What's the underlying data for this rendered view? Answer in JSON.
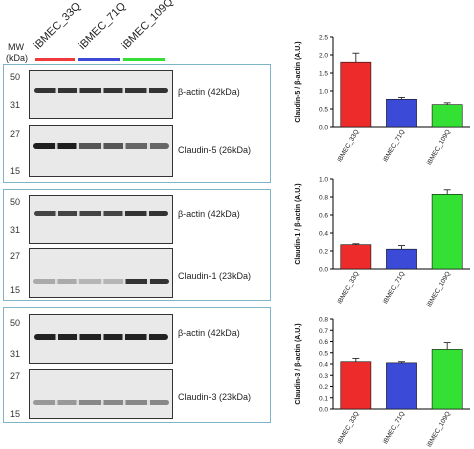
{
  "header": {
    "mw_label": "MW",
    "kda_label": "(kDa)",
    "lanes": [
      {
        "label": "iBMEC_33Q",
        "color": "#ee3a3a"
      },
      {
        "label": "iBMEC_71Q",
        "color": "#3b4bd8"
      },
      {
        "label": "iBMEC_109Q",
        "color": "#35e035"
      }
    ]
  },
  "blots": [
    {
      "top": {
        "mw_hi": "50",
        "mw_lo": "31",
        "label": "β-actin (42kDa)"
      },
      "bottom": {
        "mw_hi": "27",
        "mw_lo": "15",
        "label": "Claudin-5 (26kDa)"
      }
    },
    {
      "top": {
        "mw_hi": "50",
        "mw_lo": "31",
        "label": "β-actin (42kDa)"
      },
      "bottom": {
        "mw_hi": "27",
        "mw_lo": "15",
        "label": "Claudin-1 (23kDa)"
      }
    },
    {
      "top": {
        "mw_hi": "50",
        "mw_lo": "31",
        "label": "β-actin (42kDa)"
      },
      "bottom": {
        "mw_hi": "27",
        "mw_lo": "15",
        "label": "Claudin-3 (23kDa)"
      }
    }
  ],
  "chart_data": [
    {
      "type": "bar",
      "categories": [
        "iBMEC_33Q",
        "iBMEC_71Q",
        "iBMEC_109Q"
      ],
      "values": [
        1.8,
        0.77,
        0.62
      ],
      "errors": [
        0.25,
        0.05,
        0.05
      ],
      "colors": [
        "#ee2b2b",
        "#3b4bd8",
        "#35e035"
      ],
      "ylabel": "Claudin-5 / β-actin (A.U.)",
      "ylim": [
        0,
        2.5
      ],
      "yticks": [
        "0.0",
        "0.5",
        "1.0",
        "1.5",
        "2.0",
        "2.5"
      ]
    },
    {
      "type": "bar",
      "categories": [
        "iBMEC_33Q",
        "iBMEC_71Q",
        "iBMEC_109Q"
      ],
      "values": [
        0.27,
        0.22,
        0.83
      ],
      "errors": [
        0.01,
        0.04,
        0.05
      ],
      "colors": [
        "#ee2b2b",
        "#3b4bd8",
        "#35e035"
      ],
      "ylabel": "Claudin-1 / β-actin (A.U.)",
      "ylim": [
        0,
        1.0
      ],
      "yticks": [
        "0.0",
        "0.2",
        "0.4",
        "0.6",
        "0.8",
        "1.0"
      ]
    },
    {
      "type": "bar",
      "categories": [
        "iBMEC_33Q",
        "iBMEC_71Q",
        "iBMEC_109Q"
      ],
      "values": [
        0.42,
        0.41,
        0.53
      ],
      "errors": [
        0.03,
        0.01,
        0.06
      ],
      "colors": [
        "#ee2b2b",
        "#3b4bd8",
        "#35e035"
      ],
      "ylabel": "Claudin-3 / β-actin (A.U.)",
      "ylim": [
        0,
        0.8
      ],
      "yticks": [
        "0.0",
        "0.1",
        "0.2",
        "0.3",
        "0.4",
        "0.5",
        "0.6",
        "0.7",
        "0.8"
      ]
    }
  ]
}
